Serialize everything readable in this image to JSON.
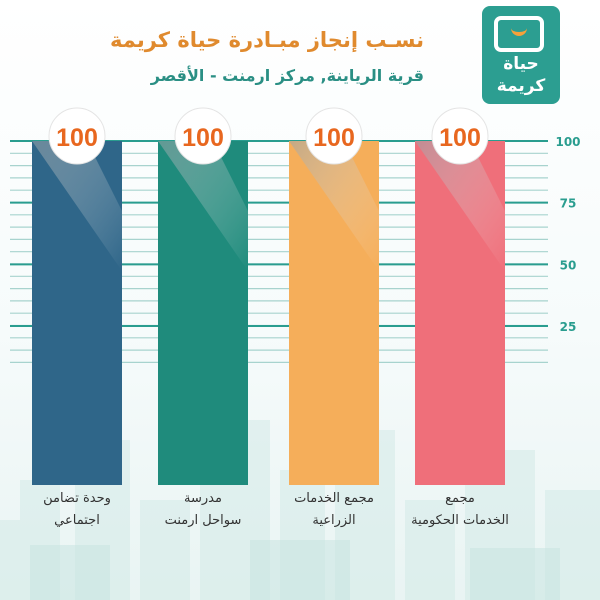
{
  "header": {
    "title": "نسـب إنجاز مبـادرة حياة كريمة",
    "subtitle": "قرية الرياينة, مركز ارمنت -  الأقصر"
  },
  "logo": {
    "line1": "حياة",
    "line2": "كريمة"
  },
  "colors": {
    "teal": "#2a9d8f",
    "orange": "#e08a2e",
    "badge_text": "#e8671f"
  },
  "chart_data": {
    "type": "bar",
    "categories": [
      "وحدة تضامن اجتماعي",
      "مدرسة سواحل ارمنت",
      "مجمع الخدمات الزراعية",
      "مجمع الخدمات الحكومية"
    ],
    "category_lines": [
      [
        "وحدة تضامن",
        "اجتماعي"
      ],
      [
        "مدرسة",
        "سواحل ارمنت"
      ],
      [
        "مجمع الخدمات",
        "الزراعية"
      ],
      [
        "مجمع",
        "الخدمات الحكومية"
      ]
    ],
    "values": [
      100,
      100,
      100,
      100
    ],
    "value_labels": [
      "100",
      "100",
      "100",
      "100"
    ],
    "bar_colors": [
      "#2f6689",
      "#1f8b7c",
      "#f5ae5a",
      "#ef6f7a"
    ],
    "ylim": [
      0,
      100
    ],
    "yticks": [
      25,
      50,
      75,
      100
    ],
    "ytick_labels": [
      "25",
      "50",
      "75",
      "100"
    ],
    "grid": true,
    "title": "نسـب إنجاز مبـادرة حياة كريمة",
    "xlabel": "",
    "ylabel": ""
  }
}
